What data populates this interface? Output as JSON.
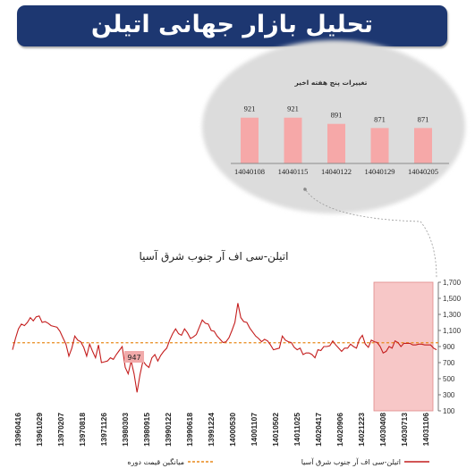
{
  "banner": {
    "title": "تحلیل بازار جهانی اتیلن"
  },
  "inset": {
    "title": "تغییرات پنج هفته اخیر"
  },
  "colors": {
    "banner_bg": "#1d3771",
    "price_line": "#c41d1d",
    "average_line": "#e8891a",
    "highlight": "#f4b4b4",
    "inset_bar": "#f6a8a8",
    "inset_bg": "#d9d9d9"
  },
  "chart_data": [
    {
      "type": "line",
      "title": "اتیلن-سی اف آر جنوب شرق آسیا",
      "x_ticks": [
        "13960416",
        "13961029",
        "13970207",
        "13970818",
        "13971126",
        "13980303",
        "13980915",
        "13990122",
        "13990618",
        "13991224",
        "14000530",
        "14001107",
        "14010502",
        "14011025",
        "14020417",
        "14020906",
        "14021223",
        "14030408",
        "14030713",
        "14031106"
      ],
      "y_ticks": [
        "100",
        "300",
        "500",
        "700",
        "900",
        "1,100",
        "1,300",
        "1,500",
        "1,700"
      ],
      "ylim": [
        100,
        1700
      ],
      "y_axis_position": "right",
      "series": [
        {
          "name": "اتیلن-سی اف آر جنوب شرق آسیا",
          "values": [
            860,
            1000,
            1120,
            1180,
            1160,
            1200,
            1260,
            1220,
            1270,
            1280,
            1200,
            1210,
            1190,
            1160,
            1150,
            1140,
            1090,
            1010,
            930,
            780,
            880,
            1030,
            980,
            960,
            890,
            780,
            930,
            840,
            760,
            920,
            700,
            710,
            720,
            760,
            740,
            800,
            850,
            900,
            640,
            560,
            720,
            560,
            330,
            550,
            720,
            670,
            640,
            760,
            800,
            720,
            790,
            840,
            880,
            980,
            1060,
            1120,
            1060,
            1040,
            1120,
            1070,
            1000,
            1020,
            1050,
            1140,
            1230,
            1190,
            1180,
            1100,
            1090,
            1030,
            990,
            950,
            960,
            1010,
            1100,
            1200,
            1440,
            1260,
            1210,
            1200,
            1130,
            1080,
            1030,
            1000,
            960,
            990,
            970,
            920,
            860,
            870,
            880,
            1030,
            980,
            960,
            950,
            890,
            860,
            880,
            800,
            820,
            820,
            800,
            760,
            860,
            850,
            900,
            900,
            910,
            970,
            920,
            880,
            840,
            880,
            880,
            930,
            900,
            880,
            990,
            1040,
            930,
            890,
            980,
            960,
            950,
            900,
            820,
            840,
            900,
            880,
            970,
            950,
            900,
            940,
            940,
            940,
            920,
            920,
            930,
            930,
            920,
            920,
            920,
            880,
            860
          ]
        },
        {
          "name": "میانگین قیمت دوره",
          "values": [
            947
          ],
          "style": "dashed"
        }
      ],
      "annotations": [
        {
          "text": "947",
          "x": "13980303",
          "y": 947
        }
      ],
      "highlight_range": [
        "14030408",
        "14031106"
      ],
      "legend": {
        "position": "bottom",
        "entries": [
          "اتیلن-سی اف آر جنوب شرق آسیا",
          "میانگین قیمت دوره"
        ]
      },
      "grid": false
    },
    {
      "type": "bar",
      "title": "تغییرات پنج هفته اخیر",
      "categories": [
        "14040108",
        "14040115",
        "14040122",
        "14040129",
        "14040205"
      ],
      "values": [
        921,
        921,
        891,
        871,
        871
      ],
      "data_labels": [
        "921",
        "921",
        "891",
        "871",
        "871"
      ],
      "grid": false
    }
  ]
}
